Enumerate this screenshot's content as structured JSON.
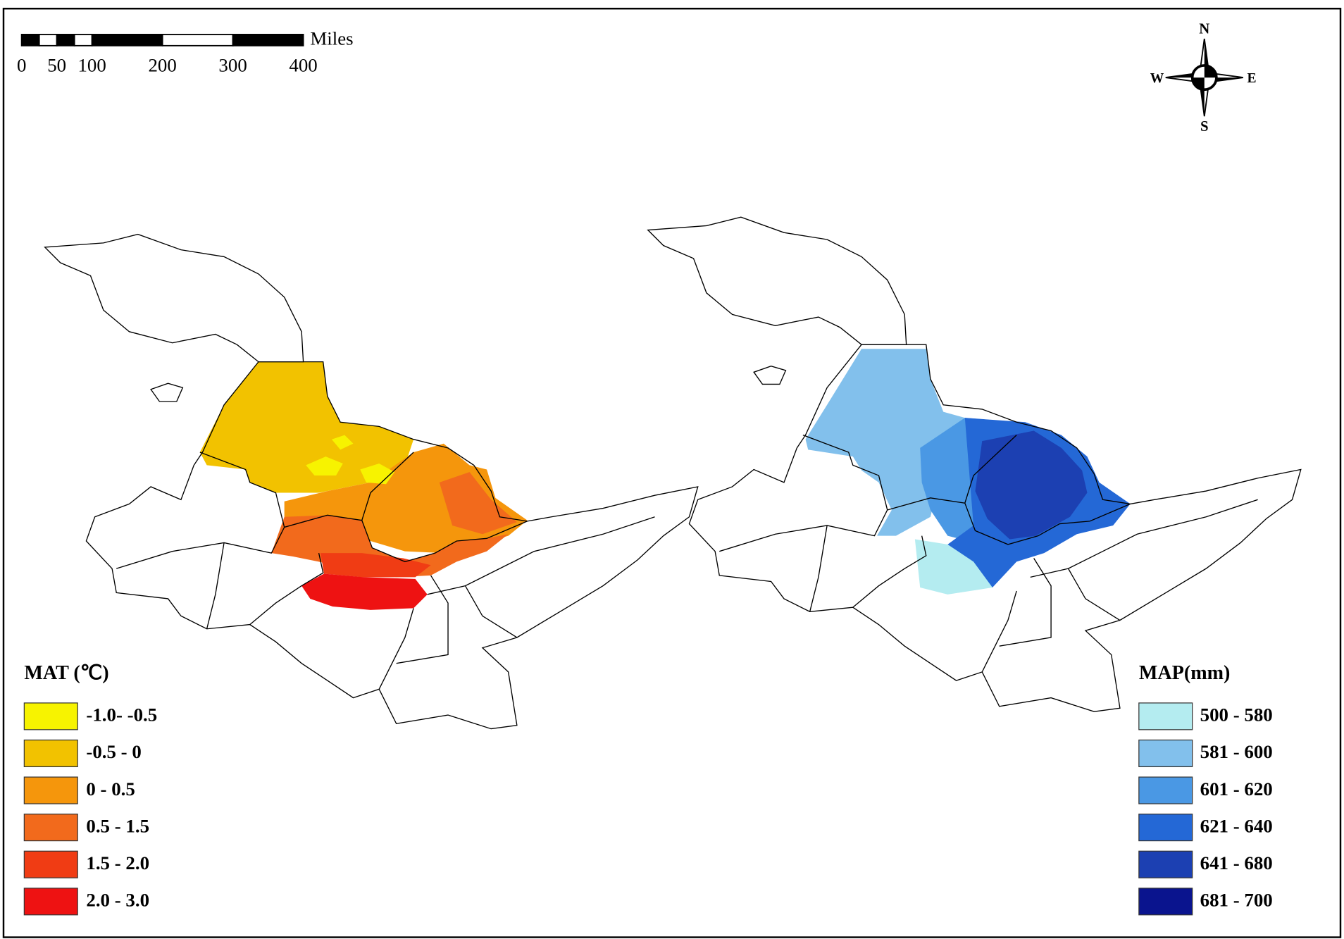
{
  "scale_bar": {
    "unit": "Miles",
    "ticks": [
      0,
      50,
      100,
      200,
      300,
      400
    ]
  },
  "compass": {
    "north": "N",
    "south": "S",
    "east": "E",
    "west": "W"
  },
  "legends": [
    {
      "title": "MAT (℃)",
      "classes": [
        {
          "label": "-1.0- -0.5",
          "color": "#f7f300"
        },
        {
          "label": "-0.5 - 0",
          "color": "#f2c200"
        },
        {
          "label": "0 - 0.5",
          "color": "#f5960c"
        },
        {
          "label": "0.5 - 1.5",
          "color": "#f26a1c"
        },
        {
          "label": "1.5 - 2.0",
          "color": "#f03c14"
        },
        {
          "label": "2.0 - 3.0",
          "color": "#ee1212"
        }
      ]
    },
    {
      "title": "MAP(mm)",
      "classes": [
        {
          "label": "500 - 580",
          "color": "#b4ecf0"
        },
        {
          "label": "581 - 600",
          "color": "#82c0ec"
        },
        {
          "label": "601 - 620",
          "color": "#4a98e4"
        },
        {
          "label": "621 - 640",
          "color": "#2468d6"
        },
        {
          "label": "641 - 680",
          "color": "#1c40b2"
        },
        {
          "label": "681 - 700",
          "color": "#0a148e"
        }
      ]
    }
  ]
}
